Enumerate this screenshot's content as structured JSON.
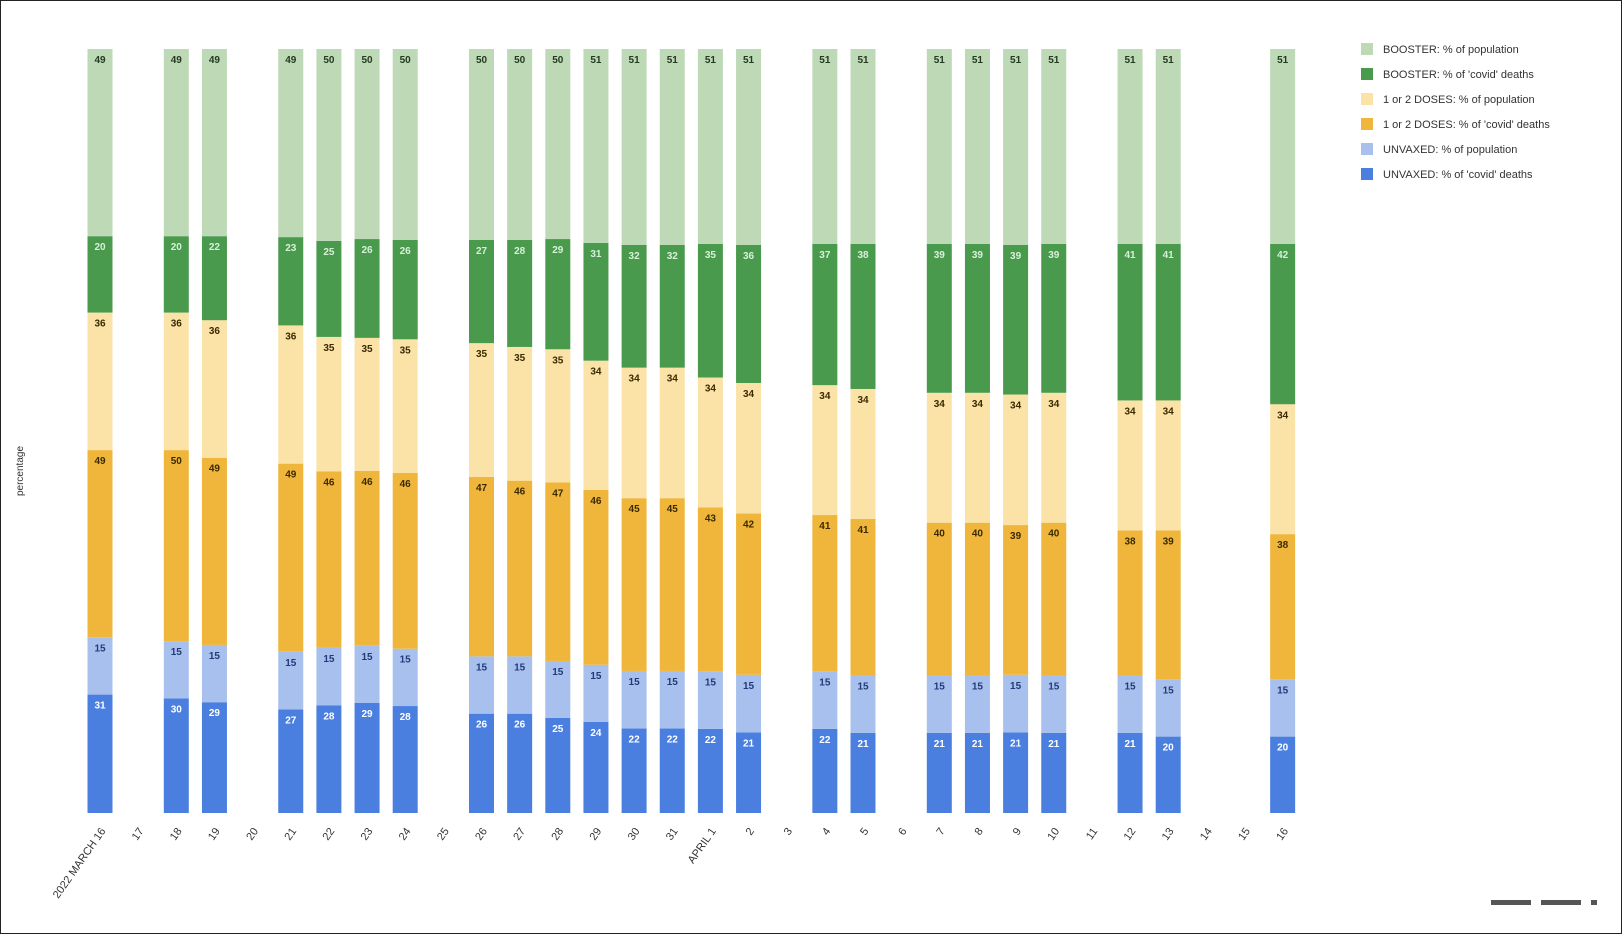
{
  "chart_data": {
    "type": "bar",
    "stacked": true,
    "title": "",
    "xlabel": "",
    "ylabel": "percentage",
    "legend_position": "top-right",
    "grid": false,
    "x_ticks": [
      "2022 MARCH 16",
      "17",
      "18",
      "19",
      "20",
      "21",
      "22",
      "23",
      "24",
      "25",
      "26",
      "27",
      "28",
      "29",
      "30",
      "31",
      "APRIL 1",
      "2",
      "3",
      "4",
      "5",
      "6",
      "7",
      "8",
      "9",
      "10",
      "11",
      "12",
      "13",
      "14",
      "15",
      "16"
    ],
    "categories": [
      "2022 MARCH 16",
      "18",
      "19",
      "21",
      "22",
      "23",
      "24",
      "26",
      "27",
      "28",
      "29",
      "30",
      "31",
      "APRIL 1",
      "2",
      "4",
      "5",
      "7",
      "8",
      "9",
      "10",
      "12",
      "13",
      "16"
    ],
    "series": [
      {
        "name": "UNVAXED: % of 'covid' deaths",
        "color": "#4a7fe0",
        "label_color": "#ffffff",
        "values": [
          31,
          30,
          29,
          27,
          28,
          29,
          28,
          26,
          26,
          25,
          24,
          22,
          22,
          22,
          21,
          22,
          21,
          21,
          21,
          21,
          21,
          21,
          20,
          20
        ]
      },
      {
        "name": "UNVAXED: % of population",
        "color": "#a8c0ed",
        "label_color": "#223a7a",
        "values": [
          15,
          15,
          15,
          15,
          15,
          15,
          15,
          15,
          15,
          15,
          15,
          15,
          15,
          15,
          15,
          15,
          15,
          15,
          15,
          15,
          15,
          15,
          15,
          15
        ]
      },
      {
        "name": "1 or 2 DOSES: % of 'covid' deaths",
        "color": "#f0b63c",
        "label_color": "#3a2a00",
        "values": [
          49,
          50,
          49,
          49,
          46,
          46,
          46,
          47,
          46,
          47,
          46,
          45,
          45,
          43,
          42,
          41,
          41,
          40,
          40,
          39,
          40,
          38,
          39,
          38
        ]
      },
      {
        "name": "1 or 2 DOSES: % of population",
        "color": "#fbe3a8",
        "label_color": "#3a2a00",
        "values": [
          36,
          36,
          36,
          36,
          35,
          35,
          35,
          35,
          35,
          35,
          34,
          34,
          34,
          34,
          34,
          34,
          34,
          34,
          34,
          34,
          34,
          34,
          34,
          34
        ]
      },
      {
        "name": "BOOSTER: % of 'covid' deaths",
        "color": "#4a9a4e",
        "label_color": "#d8f0d8",
        "values": [
          20,
          20,
          22,
          23,
          25,
          26,
          26,
          27,
          28,
          29,
          31,
          32,
          32,
          35,
          36,
          37,
          38,
          39,
          39,
          39,
          39,
          41,
          41,
          42
        ]
      },
      {
        "name": "BOOSTER: % of population",
        "color": "#bdd9b6",
        "label_color": "#243a20",
        "values": [
          49,
          49,
          49,
          49,
          50,
          50,
          50,
          50,
          50,
          50,
          51,
          51,
          51,
          51,
          51,
          51,
          51,
          51,
          51,
          51,
          51,
          51,
          51,
          51
        ]
      }
    ],
    "legend": [
      {
        "label": "BOOSTER: % of population",
        "color": "#bdd9b6"
      },
      {
        "label": "BOOSTER: % of 'covid' deaths",
        "color": "#4a9a4e"
      },
      {
        "label": "1 or 2 DOSES: % of population",
        "color": "#fbe3a8"
      },
      {
        "label": "1 or 2 DOSES: % of 'covid' deaths",
        "color": "#f0b63c"
      },
      {
        "label": "UNVAXED: % of population",
        "color": "#a8c0ed"
      },
      {
        "label": "UNVAXED: % of 'covid' deaths",
        "color": "#4a7fe0"
      }
    ]
  }
}
